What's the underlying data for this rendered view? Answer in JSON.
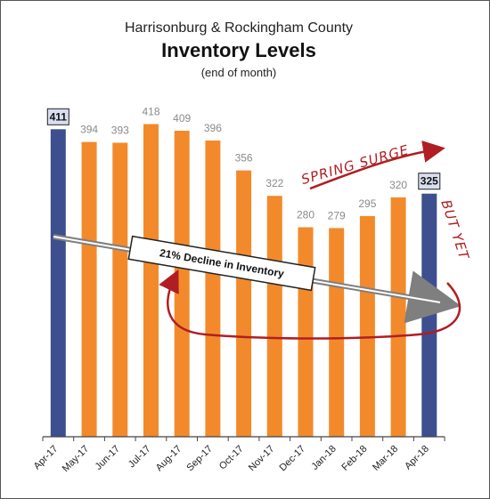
{
  "title": {
    "line1": "Harrisonburg & Rockingham County",
    "line2": "Inventory Levels",
    "line3": "(end of month)"
  },
  "annotations": {
    "decline": "21% Decline in Inventory",
    "spring_surge": "SPRING SURGE",
    "but_yet": "BUT YET"
  },
  "colors": {
    "highlight_bar": "#3d4f8e",
    "normal_bar": "#f28a2c",
    "arrow_gray": "#7f7f7f",
    "annotation_red": "#b01e23",
    "label_box_fill": "#d9def0"
  },
  "chart_data": {
    "type": "bar",
    "categories": [
      "Apr-17",
      "May-17",
      "Jun-17",
      "Jul-17",
      "Aug-17",
      "Sep-17",
      "Oct-17",
      "Nov-17",
      "Dec-17",
      "Jan-18",
      "Feb-18",
      "Mar-18",
      "Apr-18"
    ],
    "values": [
      411,
      394,
      393,
      418,
      409,
      396,
      356,
      322,
      280,
      279,
      295,
      320,
      325
    ],
    "highlighted": [
      "Apr-17",
      "Apr-18"
    ],
    "title": "Inventory Levels",
    "subtitle": "(end of month)",
    "xlabel": "",
    "ylabel": "",
    "ylim": [
      0,
      450
    ],
    "grid": false,
    "legend": "none"
  }
}
